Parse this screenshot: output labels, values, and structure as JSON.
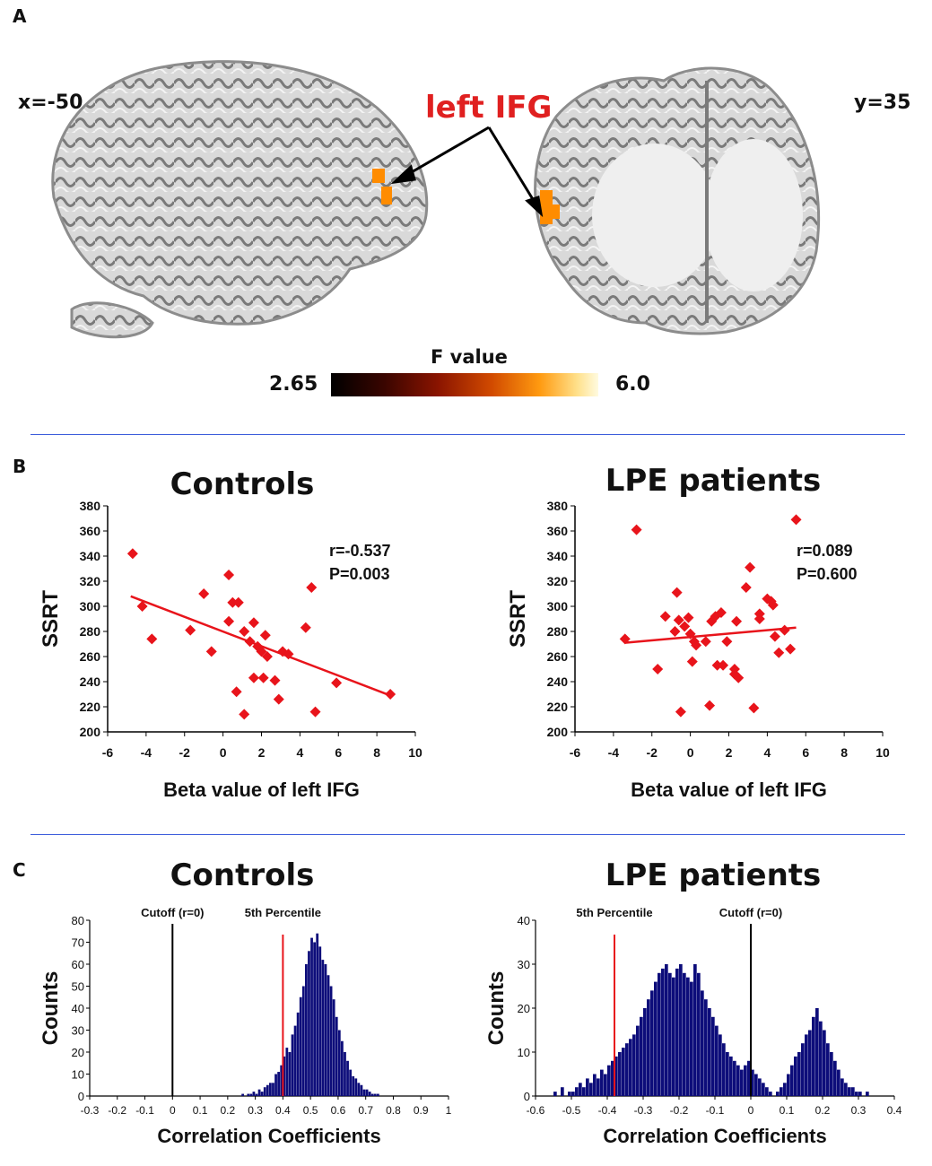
{
  "panel_a": {
    "letter": "A",
    "left_coord": "x=-50",
    "right_coord": "y=35",
    "roi_label": "left IFG",
    "colorbar": {
      "title": "F value",
      "min_label": "2.65",
      "max_label": "6.0",
      "min": 2.65,
      "max": 6.0
    },
    "roi_color": "#ff8c00",
    "arrow_color": "#000000"
  },
  "panel_b": {
    "letter": "B",
    "plots": [
      {
        "title": "Controls",
        "xlabel": "Beta value of left IFG",
        "ylabel": "SSRT",
        "stats_r": "r=-0.537",
        "stats_p": "P=0.003",
        "xticks": [
          "-6",
          "-4",
          "-2",
          "0",
          "2",
          "4",
          "6",
          "8",
          "10"
        ],
        "yticks": [
          "200",
          "220",
          "240",
          "260",
          "280",
          "300",
          "320",
          "340",
          "360",
          "380"
        ]
      },
      {
        "title": "LPE patients",
        "xlabel": "Beta value of left IFG",
        "ylabel": "SSRT",
        "stats_r": "r=0.089",
        "stats_p": "P=0.600",
        "xticks": [
          "-6",
          "-4",
          "-2",
          "0",
          "2",
          "4",
          "6",
          "8",
          "10"
        ],
        "yticks": [
          "200",
          "220",
          "240",
          "260",
          "280",
          "300",
          "320",
          "340",
          "360",
          "380"
        ]
      }
    ]
  },
  "panel_c": {
    "letter": "C",
    "plots": [
      {
        "title": "Controls",
        "xlabel": "Correlation Coefficients",
        "ylabel": "Counts",
        "cutoff_label": "Cutoff (r=0)",
        "percentile_label": "5th Percentile",
        "xticks": [
          "-0.3",
          "-0.2",
          "-0.1",
          "0",
          "0.1",
          "0.2",
          "0.3",
          "0.4",
          "0.5",
          "0.6",
          "0.7",
          "0.8",
          "0.9",
          "1"
        ],
        "yticks": [
          "0",
          "10",
          "20",
          "30",
          "40",
          "50",
          "60",
          "70",
          "80"
        ]
      },
      {
        "title": "LPE patients",
        "xlabel": "Correlation Coefficients",
        "ylabel": "Counts",
        "cutoff_label": "Cutoff (r=0)",
        "percentile_label": "5th Percentile",
        "xticks": [
          "-0.6",
          "-0.5",
          "-0.4",
          "-0.3",
          "-0.2",
          "-0.1",
          "0",
          "0.1",
          "0.2",
          "0.3",
          "0.4"
        ],
        "yticks": [
          "0",
          "10",
          "20",
          "30",
          "40"
        ]
      }
    ]
  },
  "chart_data": [
    {
      "type": "scatter",
      "title": "Controls",
      "xlabel": "Beta value of left IFG",
      "ylabel": "SSRT",
      "xlim": [
        -6,
        10
      ],
      "ylim": [
        200,
        380
      ],
      "color": "#e8141b",
      "annotation": [
        "r=-0.537",
        "P=0.003"
      ],
      "fit_line": {
        "x": [
          -4.8,
          8.7
        ],
        "y": [
          308,
          229
        ]
      },
      "points": [
        [
          -4.7,
          342
        ],
        [
          -4.2,
          300
        ],
        [
          -3.7,
          274
        ],
        [
          -1.7,
          281
        ],
        [
          -1.0,
          310
        ],
        [
          -0.6,
          264
        ],
        [
          0.3,
          325
        ],
        [
          0.3,
          288
        ],
        [
          0.5,
          303
        ],
        [
          0.8,
          303
        ],
        [
          0.7,
          232
        ],
        [
          1.1,
          280
        ],
        [
          1.1,
          214
        ],
        [
          1.4,
          272
        ],
        [
          1.6,
          287
        ],
        [
          1.6,
          243
        ],
        [
          1.8,
          268
        ],
        [
          2.0,
          264
        ],
        [
          2.1,
          243
        ],
        [
          2.2,
          277
        ],
        [
          2.3,
          260
        ],
        [
          2.7,
          241
        ],
        [
          2.9,
          226
        ],
        [
          3.1,
          264
        ],
        [
          3.4,
          262
        ],
        [
          4.3,
          283
        ],
        [
          4.6,
          315
        ],
        [
          4.8,
          216
        ],
        [
          5.9,
          239
        ],
        [
          8.7,
          230
        ]
      ]
    },
    {
      "type": "scatter",
      "title": "LPE patients",
      "xlabel": "Beta value of left IFG",
      "ylabel": "SSRT",
      "xlim": [
        -6,
        10
      ],
      "ylim": [
        200,
        380
      ],
      "color": "#e8141b",
      "annotation": [
        "r=0.089",
        "P=0.600"
      ],
      "fit_line": {
        "x": [
          -3.4,
          5.5
        ],
        "y": [
          271,
          283
        ]
      },
      "points": [
        [
          -3.4,
          274
        ],
        [
          -2.8,
          361
        ],
        [
          -1.7,
          250
        ],
        [
          -1.3,
          292
        ],
        [
          -0.8,
          280
        ],
        [
          -0.7,
          311
        ],
        [
          -0.6,
          289
        ],
        [
          -0.5,
          216
        ],
        [
          -0.3,
          284
        ],
        [
          -0.1,
          291
        ],
        [
          0.0,
          278
        ],
        [
          0.1,
          256
        ],
        [
          0.2,
          272
        ],
        [
          0.3,
          269
        ],
        [
          0.8,
          272
        ],
        [
          1.0,
          221
        ],
        [
          1.1,
          288
        ],
        [
          1.3,
          292
        ],
        [
          1.4,
          253
        ],
        [
          1.6,
          295
        ],
        [
          1.7,
          253
        ],
        [
          1.9,
          272
        ],
        [
          2.3,
          250
        ],
        [
          2.3,
          246
        ],
        [
          2.4,
          288
        ],
        [
          2.5,
          243
        ],
        [
          2.9,
          315
        ],
        [
          3.1,
          331
        ],
        [
          3.3,
          219
        ],
        [
          3.6,
          294
        ],
        [
          3.6,
          290
        ],
        [
          4.0,
          306
        ],
        [
          4.2,
          304
        ],
        [
          4.3,
          301
        ],
        [
          4.4,
          276
        ],
        [
          4.6,
          263
        ],
        [
          4.9,
          281
        ],
        [
          5.2,
          266
        ],
        [
          5.5,
          369
        ]
      ]
    },
    {
      "type": "bar",
      "subtype": "histogram",
      "title": "Controls",
      "xlabel": "Correlation Coefficients",
      "ylabel": "Counts",
      "xlim": [
        -0.3,
        1.0
      ],
      "ylim": [
        0,
        80
      ],
      "bar_color": "#0d0d7a",
      "bin_width": 0.01,
      "bin_start": 0.25,
      "counts": [
        1,
        0,
        1,
        1,
        2,
        1,
        3,
        2,
        4,
        5,
        6,
        6,
        10,
        11,
        14,
        18,
        22,
        20,
        28,
        32,
        38,
        45,
        50,
        60,
        66,
        72,
        70,
        74,
        68,
        62,
        60,
        55,
        50,
        44,
        36,
        30,
        25,
        20,
        16,
        12,
        9,
        8,
        6,
        5,
        3,
        3,
        2,
        1,
        1,
        1
      ],
      "cutoff_r": 0,
      "percentile_5th": 0.4
    },
    {
      "type": "bar",
      "subtype": "histogram",
      "title": "LPE patients",
      "xlabel": "Correlation Coefficients",
      "ylabel": "Counts",
      "xlim": [
        -0.6,
        0.4
      ],
      "ylim": [
        0,
        40
      ],
      "bar_color": "#0d0d7a",
      "bin_width": 0.01,
      "bin_start": -0.55,
      "counts": [
        1,
        0,
        2,
        0,
        1,
        1,
        2,
        3,
        2,
        4,
        3,
        5,
        4,
        6,
        5,
        7,
        8,
        9,
        10,
        11,
        12,
        13,
        14,
        16,
        18,
        20,
        22,
        24,
        26,
        28,
        29,
        30,
        28,
        27,
        29,
        30,
        28,
        27,
        26,
        30,
        28,
        24,
        22,
        20,
        18,
        16,
        14,
        12,
        10,
        9,
        8,
        7,
        6,
        7,
        8,
        6,
        5,
        4,
        3,
        2,
        1,
        0,
        1,
        2,
        3,
        5,
        7,
        9,
        10,
        12,
        14,
        15,
        18,
        20,
        17,
        15,
        12,
        10,
        8,
        6,
        4,
        3,
        2,
        2,
        1,
        1,
        0,
        1,
        0
      ],
      "cutoff_r": 0,
      "percentile_5th": -0.38
    }
  ]
}
